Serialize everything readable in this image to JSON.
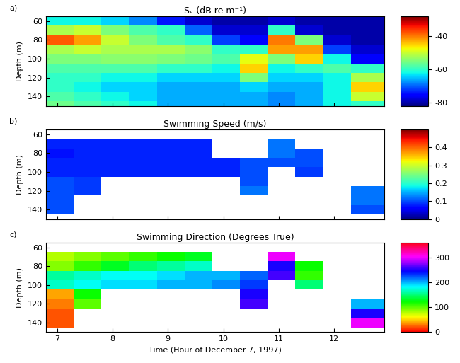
{
  "chart_data": [
    {
      "type": "heatmap",
      "panel": "a)",
      "title": "Sᵥ (dB re m⁻¹)",
      "ylabel": "Depth (m)",
      "color": "jet",
      "tick_labels": "y",
      "xlim": [
        6.8,
        12.9
      ],
      "xticks": [
        7,
        8,
        9,
        10,
        11,
        12
      ],
      "ylim": [
        150,
        55
      ],
      "yticks": [
        60,
        80,
        100,
        120,
        140
      ],
      "x_edges": [
        6.8,
        7.3,
        7.8,
        8.3,
        8.8,
        9.3,
        9.8,
        10.3,
        10.8,
        11.3,
        11.8,
        12.3,
        12.9
      ],
      "y_edges": [
        55,
        65,
        75,
        85,
        95,
        105,
        115,
        125,
        135,
        145,
        150
      ],
      "color_range": [
        -82,
        -28
      ],
      "color_ticks": [
        -80,
        -60,
        -40
      ],
      "cells": [
        [
          -62,
          -62,
          -64,
          -68,
          -74,
          -78,
          -80,
          -80,
          -78,
          -80,
          -80,
          -80
        ],
        [
          -52,
          -50,
          -55,
          -58,
          -60,
          -70,
          -78,
          -78,
          -60,
          -78,
          -80,
          -80
        ],
        [
          -38,
          -42,
          -50,
          -55,
          -58,
          -60,
          -72,
          -76,
          -40,
          -55,
          -78,
          -80
        ],
        [
          -52,
          -50,
          -52,
          -52,
          -52,
          -54,
          -60,
          -60,
          -42,
          -42,
          -72,
          -78
        ],
        [
          -55,
          -55,
          -54,
          -54,
          -55,
          -56,
          -58,
          -48,
          -55,
          -45,
          -62,
          -76
        ],
        [
          -58,
          -58,
          -58,
          -58,
          -60,
          -60,
          -62,
          -45,
          -62,
          -60,
          -58,
          -60
        ],
        [
          -60,
          -60,
          -62,
          -62,
          -64,
          -64,
          -64,
          -55,
          -64,
          -64,
          -62,
          -52
        ],
        [
          -60,
          -62,
          -64,
          -64,
          -66,
          -66,
          -66,
          -64,
          -66,
          -66,
          -62,
          -45
        ],
        [
          -58,
          -60,
          -62,
          -64,
          -66,
          -66,
          -66,
          -66,
          -68,
          -66,
          -62,
          -50
        ],
        [
          -56,
          -58,
          -60,
          -62,
          -66,
          -66,
          -66,
          -66,
          -68,
          -66,
          -62,
          -60
        ]
      ]
    },
    {
      "type": "heatmap",
      "panel": "b)",
      "title": "Swimming Speed (m/s)",
      "ylabel": "Depth (m)",
      "color": "jet",
      "tick_labels": "y",
      "xlim": [
        6.8,
        12.9
      ],
      "xticks": [
        7,
        8,
        9,
        10,
        11,
        12
      ],
      "ylim": [
        150,
        55
      ],
      "yticks": [
        60,
        80,
        100,
        120,
        140
      ],
      "x_edges": [
        6.8,
        7.3,
        7.8,
        8.3,
        8.8,
        9.3,
        9.8,
        10.3,
        10.8,
        11.3,
        11.8,
        12.3,
        12.9
      ],
      "y_edges": [
        55,
        65,
        75,
        85,
        95,
        105,
        115,
        125,
        135,
        145,
        150
      ],
      "color_range": [
        0,
        0.5
      ],
      "color_ticks": [
        0,
        0.1,
        0.2,
        0.3,
        0.4
      ],
      "cells": [
        [
          null,
          null,
          null,
          null,
          null,
          null,
          null,
          null,
          null,
          null,
          null,
          null
        ],
        [
          0.08,
          0.08,
          0.08,
          0.08,
          0.08,
          0.08,
          null,
          null,
          0.12,
          null,
          null,
          null
        ],
        [
          0.07,
          0.08,
          0.08,
          0.08,
          0.08,
          0.08,
          null,
          null,
          0.12,
          0.1,
          null,
          null
        ],
        [
          0.08,
          0.08,
          0.08,
          0.08,
          0.08,
          0.08,
          0.08,
          0.1,
          0.1,
          0.1,
          null,
          null
        ],
        [
          0.08,
          0.08,
          0.08,
          0.08,
          0.08,
          0.08,
          0.08,
          0.1,
          null,
          0.09,
          null,
          null
        ],
        [
          0.1,
          0.09,
          null,
          null,
          null,
          null,
          null,
          0.1,
          null,
          null,
          null,
          null
        ],
        [
          0.1,
          0.09,
          null,
          null,
          null,
          null,
          null,
          0.12,
          null,
          null,
          null,
          0.12
        ],
        [
          0.1,
          null,
          null,
          null,
          null,
          null,
          null,
          null,
          null,
          null,
          null,
          0.12
        ],
        [
          0.1,
          null,
          null,
          null,
          null,
          null,
          null,
          null,
          null,
          null,
          null,
          0.1
        ],
        [
          null,
          null,
          null,
          null,
          null,
          null,
          null,
          null,
          null,
          null,
          null,
          null
        ]
      ]
    },
    {
      "type": "heatmap",
      "panel": "c)",
      "title": "Swimming Direction (Degrees True)",
      "ylabel": "Depth (m)",
      "xlabel": "Time (Hour of December 7, 1997)",
      "color": "hsv",
      "xlim": [
        6.8,
        12.9
      ],
      "xticks": [
        7,
        8,
        9,
        10,
        11,
        12
      ],
      "ylim": [
        150,
        55
      ],
      "yticks": [
        60,
        80,
        100,
        120,
        140
      ],
      "x_edges": [
        6.8,
        7.3,
        7.8,
        8.3,
        8.8,
        9.3,
        9.8,
        10.3,
        10.8,
        11.3,
        11.8,
        12.3,
        12.9
      ],
      "y_edges": [
        55,
        65,
        75,
        85,
        95,
        105,
        115,
        125,
        135,
        145,
        150
      ],
      "color_range": [
        0,
        360
      ],
      "color_ticks": [
        0,
        100,
        200,
        300
      ],
      "cells": [
        [
          null,
          null,
          null,
          null,
          null,
          null,
          null,
          null,
          null,
          null,
          null,
          null
        ],
        [
          80,
          90,
          100,
          110,
          120,
          130,
          null,
          null,
          300,
          null,
          null,
          null
        ],
        [
          90,
          110,
          130,
          150,
          160,
          170,
          null,
          null,
          250,
          120,
          null,
          null
        ],
        [
          160,
          170,
          180,
          180,
          190,
          200,
          200,
          220,
          260,
          110,
          null,
          null
        ],
        [
          170,
          180,
          190,
          190,
          200,
          200,
          210,
          230,
          null,
          150,
          null,
          null
        ],
        [
          40,
          120,
          null,
          null,
          null,
          null,
          null,
          250,
          null,
          null,
          null,
          null
        ],
        [
          30,
          100,
          null,
          null,
          null,
          null,
          null,
          260,
          null,
          null,
          null,
          200
        ],
        [
          20,
          null,
          null,
          null,
          null,
          null,
          null,
          null,
          null,
          null,
          null,
          250
        ],
        [
          20,
          null,
          null,
          null,
          null,
          null,
          null,
          null,
          null,
          null,
          null,
          300
        ],
        [
          null,
          null,
          null,
          null,
          null,
          null,
          null,
          null,
          null,
          null,
          null,
          null
        ]
      ]
    }
  ]
}
